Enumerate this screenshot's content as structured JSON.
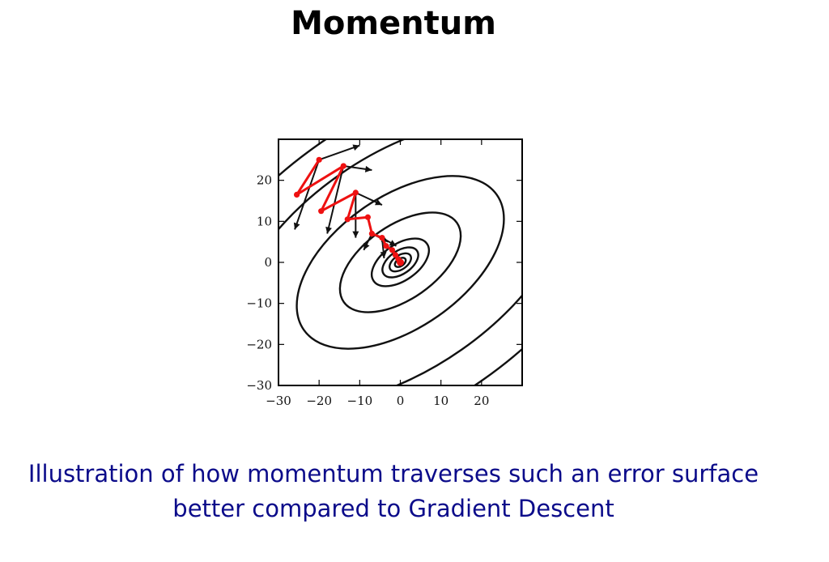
{
  "slide": {
    "title": "Momentum",
    "caption_lines": [
      "Illustration of how momentum traverses such an error surface",
      "better compared to Gradient Descent"
    ]
  },
  "colors": {
    "path": "#ee1111",
    "arrows": "#111111",
    "contours": "#111111",
    "caption": "#0b0b8a"
  },
  "chart_data": {
    "type": "scatter",
    "xlim": [
      -30,
      30
    ],
    "ylim": [
      -30,
      30
    ],
    "x_ticks": [
      "−30",
      "−20",
      "−10",
      "0",
      "10",
      "20"
    ],
    "x_tick_values": [
      -30,
      -20,
      -10,
      0,
      10,
      20
    ],
    "y_ticks": [
      "−30",
      "−20",
      "−10",
      "0",
      "10",
      "20"
    ],
    "y_tick_values": [
      -30,
      -20,
      -10,
      0,
      10,
      20
    ],
    "grid": false,
    "contours": {
      "center": [
        0,
        0
      ],
      "rotation_deg": -35,
      "semi_axes": [
        [
          1.5,
          0.9
        ],
        [
          3,
          1.7
        ],
        [
          5,
          2.8
        ],
        [
          8,
          4.4
        ],
        [
          17,
          9
        ],
        [
          29,
          16
        ],
        [
          48,
          26
        ],
        [
          64,
          35
        ]
      ]
    },
    "momentum_path": [
      {
        "x": -20,
        "y": 25
      },
      {
        "x": -25.5,
        "y": 16.5
      },
      {
        "x": -14,
        "y": 23.5
      },
      {
        "x": -19.5,
        "y": 12.5
      },
      {
        "x": -11,
        "y": 17
      },
      {
        "x": -13,
        "y": 10.5
      },
      {
        "x": -8,
        "y": 11
      },
      {
        "x": -7,
        "y": 7
      },
      {
        "x": -4.5,
        "y": 6
      },
      {
        "x": -3.5,
        "y": 4
      },
      {
        "x": -2,
        "y": 3
      },
      {
        "x": -1.2,
        "y": 1.8
      },
      {
        "x": -0.5,
        "y": 0.8
      },
      {
        "x": 0,
        "y": 0
      }
    ],
    "gradient_arrows": [
      {
        "from": [
          -20,
          25
        ],
        "to": [
          -10,
          28.5
        ]
      },
      {
        "from": [
          -20,
          25
        ],
        "to": [
          -26,
          8
        ]
      },
      {
        "from": [
          -14,
          23.5
        ],
        "to": [
          -7,
          22.5
        ]
      },
      {
        "from": [
          -14,
          23.5
        ],
        "to": [
          -18,
          7
        ]
      },
      {
        "from": [
          -11,
          17
        ],
        "to": [
          -4.5,
          14
        ]
      },
      {
        "from": [
          -11,
          17
        ],
        "to": [
          -11,
          6
        ]
      },
      {
        "from": [
          -7,
          7
        ],
        "to": [
          -3,
          5
        ]
      },
      {
        "from": [
          -7,
          7
        ],
        "to": [
          -9,
          3
        ]
      },
      {
        "from": [
          -4.5,
          6
        ],
        "to": [
          -1,
          4
        ]
      },
      {
        "from": [
          -4.5,
          6
        ],
        "to": [
          -4,
          1
        ]
      }
    ]
  }
}
